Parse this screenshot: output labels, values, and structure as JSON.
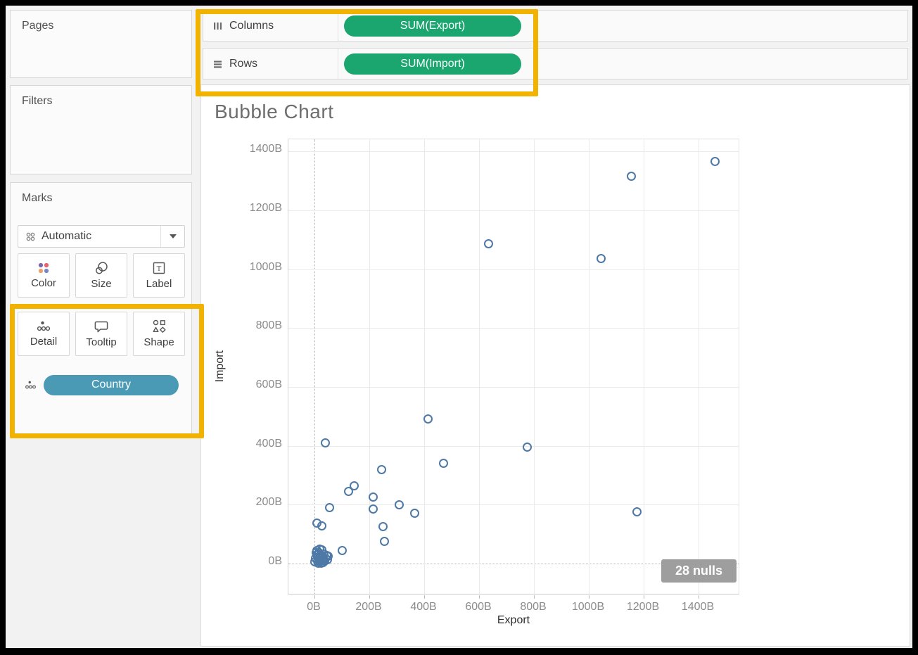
{
  "sidebar": {
    "pages": {
      "label": "Pages"
    },
    "filters": {
      "label": "Filters"
    },
    "marks": {
      "title": "Marks",
      "mark_type_selector": {
        "value": "Automatic"
      },
      "buttons": [
        {
          "label": "Color"
        },
        {
          "label": "Size"
        },
        {
          "label": "Label"
        },
        {
          "label": "Detail"
        },
        {
          "label": "Tooltip"
        },
        {
          "label": "Shape"
        }
      ],
      "encoding_pill": {
        "label": "Country",
        "role": "detail"
      }
    }
  },
  "shelves": {
    "columns": {
      "label": "Columns",
      "pill": "SUM(Export)"
    },
    "rows": {
      "label": "Rows",
      "pill": "SUM(Import)"
    }
  },
  "chart": {
    "title": "Bubble Chart",
    "x_axis_title": "Export",
    "y_axis_title": "Import",
    "nulls_badge": "28 nulls"
  },
  "chart_data": {
    "type": "scatter",
    "title": "Bubble Chart",
    "xlabel": "Export",
    "ylabel": "Import",
    "unit": "billions (B)",
    "xlim": [
      -95,
      1550
    ],
    "ylim": [
      -95,
      1550
    ],
    "tick_values": [
      0,
      200,
      400,
      600,
      800,
      1000,
      1200,
      1400
    ],
    "tick_suffix": "B",
    "grid": true,
    "marker": "open-circle",
    "marker_color": "#4e79a7",
    "annotation": {
      "text": "28 nulls",
      "position": "bottom-right"
    },
    "points": [
      [
        1460,
        1365
      ],
      [
        1155,
        1315
      ],
      [
        1045,
        1035
      ],
      [
        635,
        1085
      ],
      [
        1175,
        175
      ],
      [
        775,
        395
      ],
      [
        470,
        340
      ],
      [
        415,
        490
      ],
      [
        365,
        170
      ],
      [
        310,
        200
      ],
      [
        255,
        75
      ],
      [
        250,
        125
      ],
      [
        245,
        320
      ],
      [
        215,
        225
      ],
      [
        215,
        185
      ],
      [
        145,
        265
      ],
      [
        125,
        245
      ],
      [
        100,
        45
      ],
      [
        55,
        190
      ],
      [
        40,
        410
      ],
      [
        26,
        127
      ],
      [
        10,
        137
      ],
      [
        2,
        6
      ],
      [
        5,
        18
      ],
      [
        8,
        30
      ],
      [
        11,
        8
      ],
      [
        14,
        22
      ],
      [
        17,
        38
      ],
      [
        20,
        6
      ],
      [
        23,
        16
      ],
      [
        26,
        28
      ],
      [
        29,
        10
      ],
      [
        32,
        20
      ],
      [
        35,
        32
      ],
      [
        38,
        8
      ],
      [
        41,
        18
      ],
      [
        44,
        28
      ],
      [
        18,
        50
      ],
      [
        28,
        46
      ],
      [
        10,
        44
      ],
      [
        47,
        14
      ],
      [
        50,
        24
      ],
      [
        24,
        2
      ],
      [
        33,
        3
      ],
      [
        15,
        2
      ],
      [
        6,
        38
      ]
    ]
  },
  "colors": {
    "measure_pill_green": "#1ba56f",
    "dimension_pill_blue": "#4a9ab6",
    "highlight_yellow": "#f2b200",
    "marker_blue": "#4e79a7",
    "nulls_badge_gray": "#9e9e9e"
  }
}
